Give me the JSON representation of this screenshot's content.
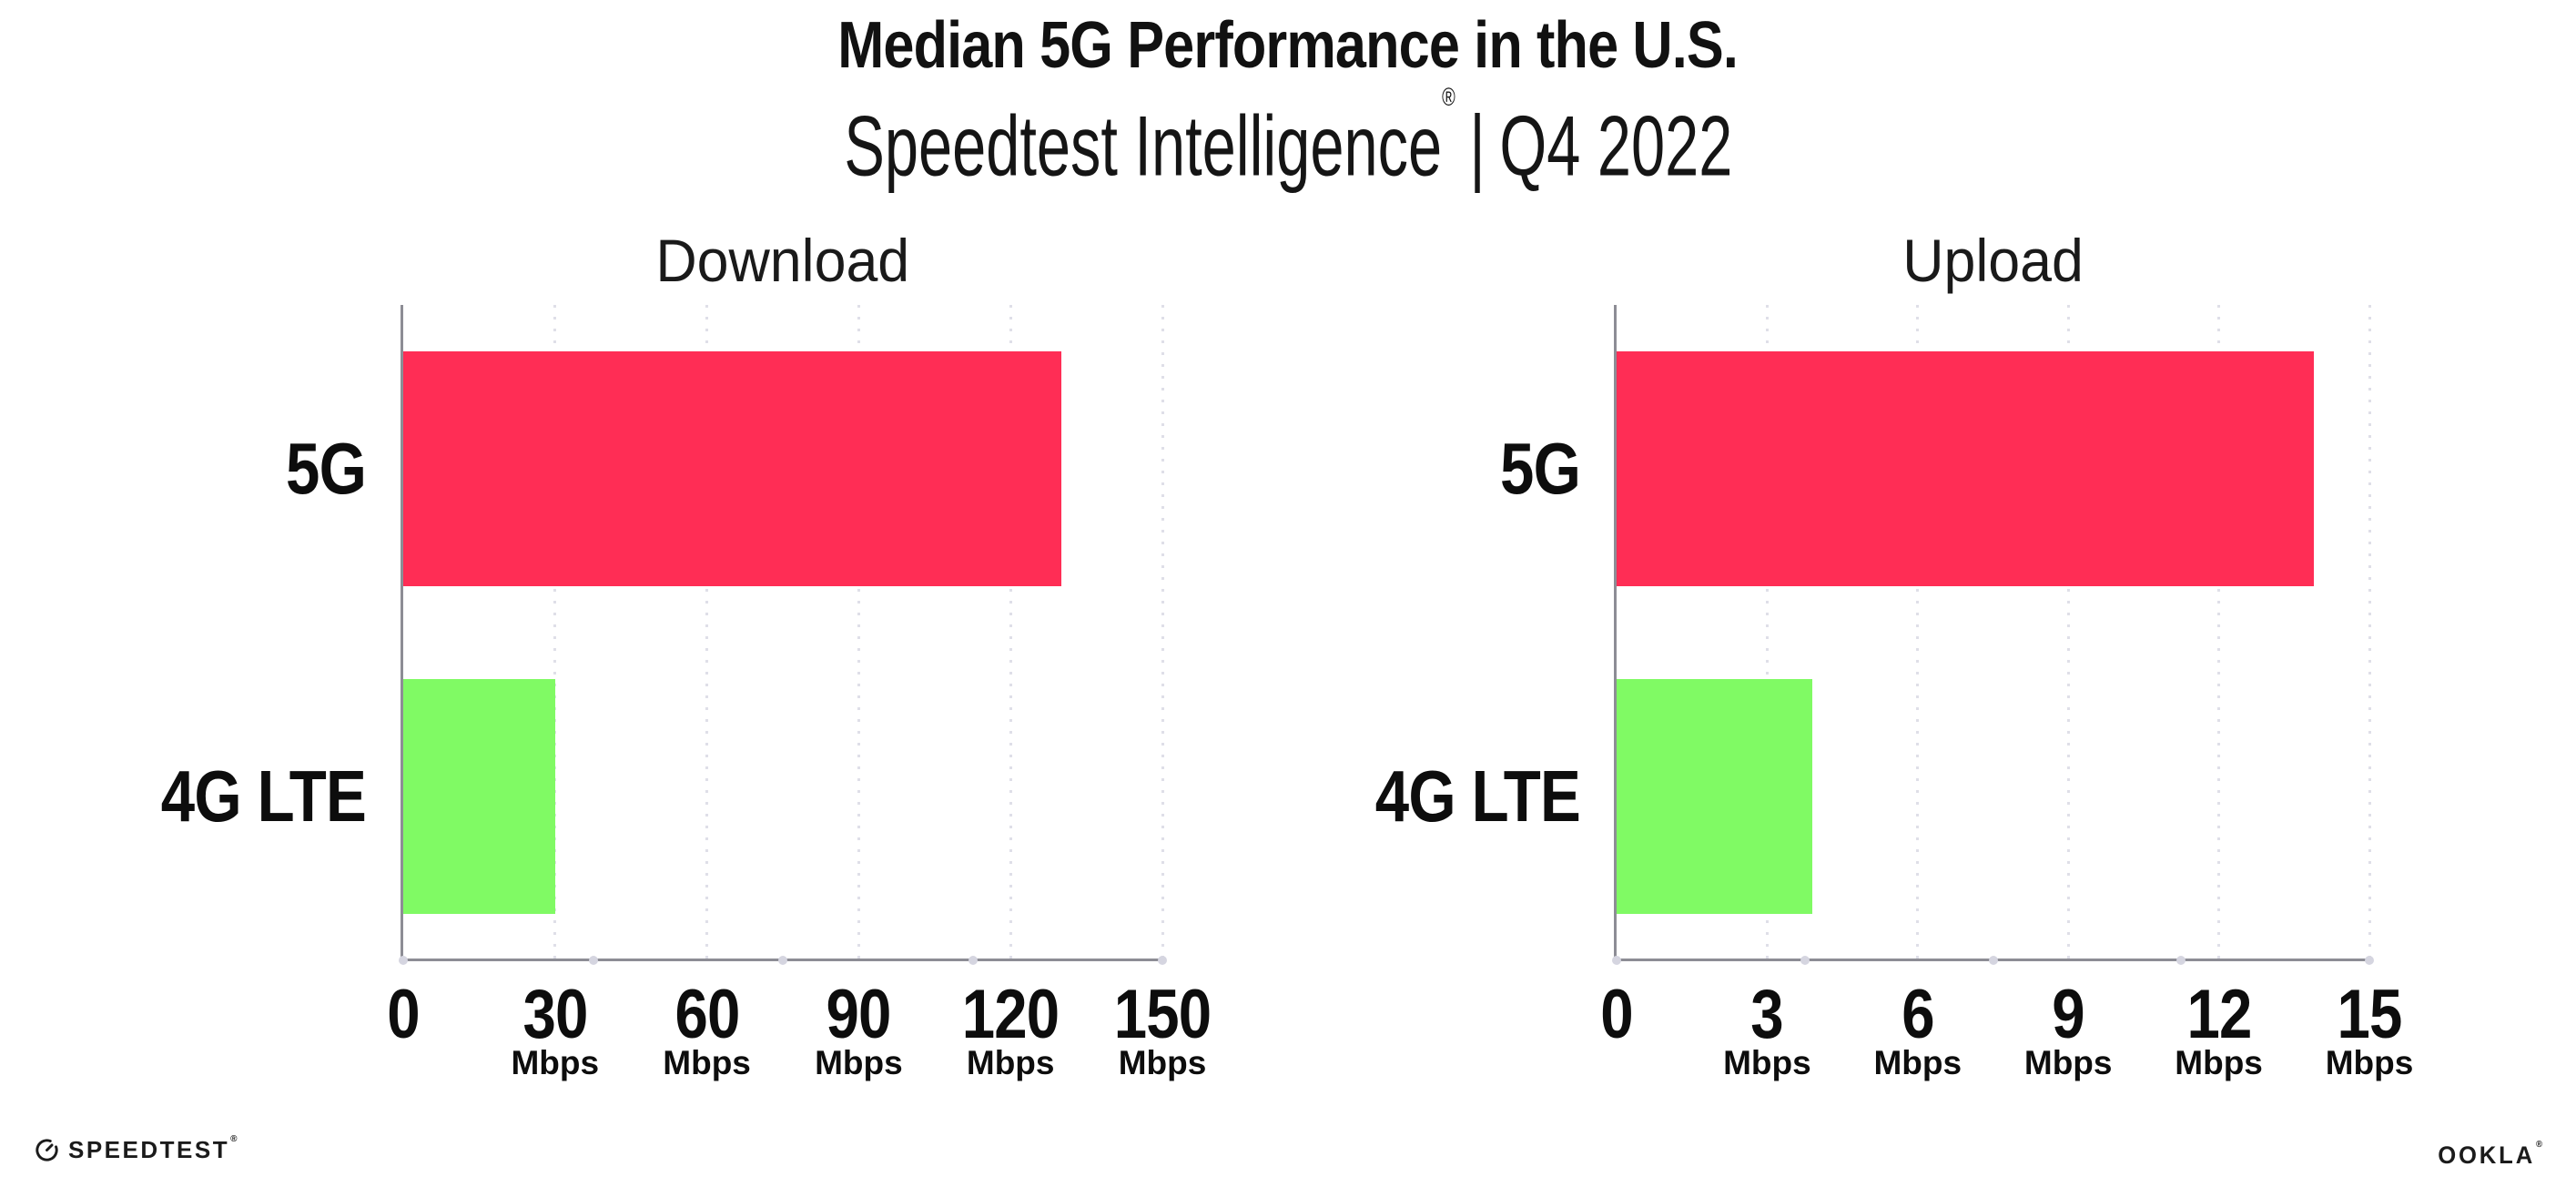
{
  "header": {
    "title": "Median 5G Performance in the U.S.",
    "subtitle_brand": "Speedtest Intelligence",
    "registered_mark": "®",
    "subtitle_separator": "|",
    "subtitle_period": "Q4 2022"
  },
  "chart_data": [
    {
      "type": "bar",
      "orientation": "horizontal",
      "title": "Download",
      "categories": [
        "5G",
        "4G LTE"
      ],
      "values": [
        130,
        30
      ],
      "unit": "Mbps",
      "xlim": [
        0,
        150
      ],
      "xticks": [
        0,
        30,
        60,
        90,
        120,
        150
      ],
      "bar_colors": [
        "#FF2D55",
        "#80FA64"
      ],
      "grid": "vertical-dotted",
      "legend": "none"
    },
    {
      "type": "bar",
      "orientation": "horizontal",
      "title": "Upload",
      "categories": [
        "5G",
        "4G LTE"
      ],
      "values": [
        13.9,
        3.9
      ],
      "unit": "Mbps",
      "xlim": [
        0,
        15
      ],
      "xticks": [
        0,
        3,
        6,
        9,
        12,
        15
      ],
      "bar_colors": [
        "#FF2D55",
        "#80FA64"
      ],
      "grid": "vertical-dotted",
      "legend": "none"
    }
  ],
  "footer": {
    "speedtest_icon": "speedtest-gauge-icon",
    "speedtest_label": "SPEEDTEST",
    "ookla_label": "OOKLA",
    "registered_mark": "®"
  },
  "colors": {
    "bar_5g": "#FF2D55",
    "bar_4g_lte": "#80FA64",
    "axis": "#8d8d95",
    "gridline": "#dfdfe8",
    "axis_dot": "#d5d5e0",
    "text": "#111111",
    "background": "#ffffff"
  }
}
